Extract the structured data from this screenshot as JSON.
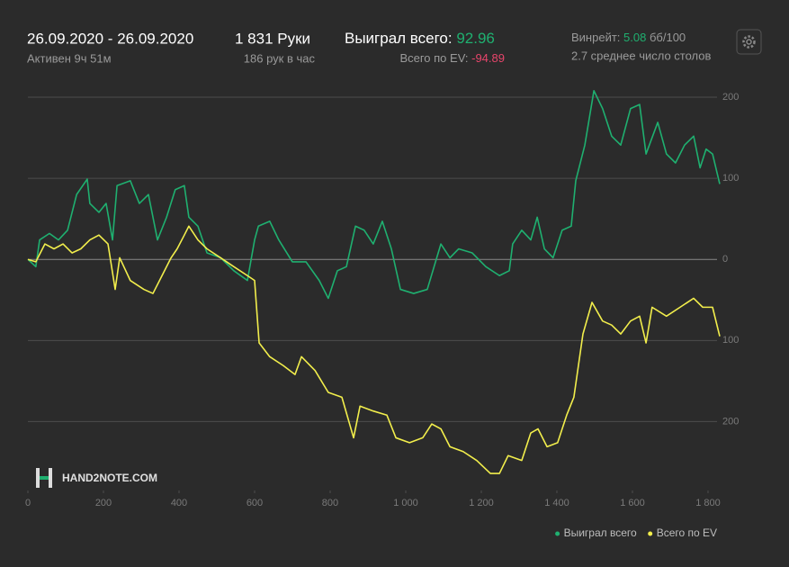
{
  "header": {
    "date_range": "26.09.2020 - 26.09.2020",
    "active": "Активен 9ч 51м",
    "hands": "1 831 Руки",
    "hands_per_hour": "186 рук в час",
    "won_label": "Выиграл всего:",
    "won_value": "92.96",
    "ev_label": "Всего по EV:",
    "ev_value": "-94.89",
    "winrate_label": "Винрейт:",
    "winrate_value": "5.08",
    "winrate_unit": "бб/100",
    "tables": "2.7 среднее число столов"
  },
  "logo": "HAND2NOTE.COM",
  "chart_data": {
    "type": "line",
    "xlim": [
      0,
      1831
    ],
    "ylim": [
      -285,
      220
    ],
    "xticks": [
      0,
      200,
      400,
      600,
      800,
      {
        "value": 1000,
        "label": "1 000"
      },
      {
        "value": 1200,
        "label": "1 200"
      },
      {
        "value": 1400,
        "label": "1 400"
      },
      {
        "value": 1600,
        "label": "1 600"
      },
      {
        "value": 1800,
        "label": "1 800"
      }
    ],
    "yticks": [
      {
        "value": -200,
        "label": "200"
      },
      {
        "value": -100,
        "label": "100"
      },
      0,
      100,
      200
    ],
    "grid": true,
    "legend": "bottom-right",
    "series": [
      {
        "name": "Выиграл всего",
        "color": "#1fb070",
        "x": [
          0,
          21,
          31,
          57,
          81,
          105,
          129,
          157,
          164,
          188,
          207,
          224,
          236,
          271,
          295,
          319,
          343,
          367,
          390,
          414,
          426,
          450,
          474,
          510,
          545,
          581,
          600,
          610,
          640,
          664,
          700,
          736,
          771,
          795,
          819,
          843,
          867,
          890,
          914,
          938,
          962,
          986,
          1021,
          1057,
          1093,
          1117,
          1140,
          1176,
          1212,
          1248,
          1274,
          1283,
          1307,
          1331,
          1348,
          1367,
          1390,
          1414,
          1438,
          1450,
          1474,
          1498,
          1521,
          1545,
          1569,
          1595,
          1619,
          1636,
          1667,
          1690,
          1714,
          1738,
          1762,
          1779,
          1795,
          1812,
          1831
        ],
        "values": [
          0,
          -9,
          24,
          32,
          24,
          36,
          80,
          99,
          69,
          58,
          69,
          24,
          91,
          97,
          69,
          80,
          24,
          52,
          86,
          91,
          52,
          41,
          8,
          2,
          -14,
          -26,
          24,
          41,
          47,
          24,
          -3,
          -3,
          -26,
          -48,
          -14,
          -9,
          41,
          36,
          19,
          47,
          13,
          -37,
          -42,
          -37,
          19,
          2,
          13,
          8,
          -9,
          -20,
          -14,
          19,
          36,
          24,
          52,
          13,
          2,
          36,
          41,
          97,
          141,
          208,
          186,
          152,
          141,
          186,
          191,
          130,
          169,
          130,
          119,
          141,
          152,
          113,
          136,
          130,
          92.96
        ]
      },
      {
        "name": "Всего по EV",
        "color": "#f2ee4c",
        "x": [
          0,
          21,
          45,
          69,
          93,
          117,
          140,
          164,
          188,
          212,
          231,
          243,
          271,
          307,
          331,
          355,
          379,
          395,
          414,
          426,
          450,
          474,
          510,
          545,
          581,
          600,
          612,
          640,
          676,
          707,
          724,
          760,
          795,
          831,
          862,
          879,
          914,
          950,
          974,
          1010,
          1045,
          1069,
          1093,
          1117,
          1152,
          1188,
          1224,
          1248,
          1271,
          1307,
          1331,
          1350,
          1374,
          1402,
          1426,
          1445,
          1469,
          1493,
          1521,
          1545,
          1569,
          1595,
          1619,
          1636,
          1652,
          1690,
          1726,
          1762,
          1786,
          1812,
          1831
        ],
        "values": [
          0,
          -3,
          19,
          13,
          19,
          8,
          13,
          24,
          30,
          19,
          -37,
          2,
          -26,
          -37,
          -42,
          -20,
          2,
          13,
          30,
          41,
          24,
          13,
          2,
          -9,
          -20,
          -26,
          -103,
          -120,
          -131,
          -142,
          -120,
          -137,
          -164,
          -170,
          -220,
          -181,
          -187,
          -192,
          -220,
          -226,
          -220,
          -203,
          -209,
          -231,
          -237,
          -248,
          -264,
          -264,
          -242,
          -248,
          -214,
          -209,
          -231,
          -226,
          -192,
          -170,
          -92,
          -53,
          -76,
          -81,
          -92,
          -76,
          -70,
          -103,
          -59,
          -70,
          -59,
          -48,
          -59,
          -59,
          -94.89
        ]
      }
    ]
  }
}
